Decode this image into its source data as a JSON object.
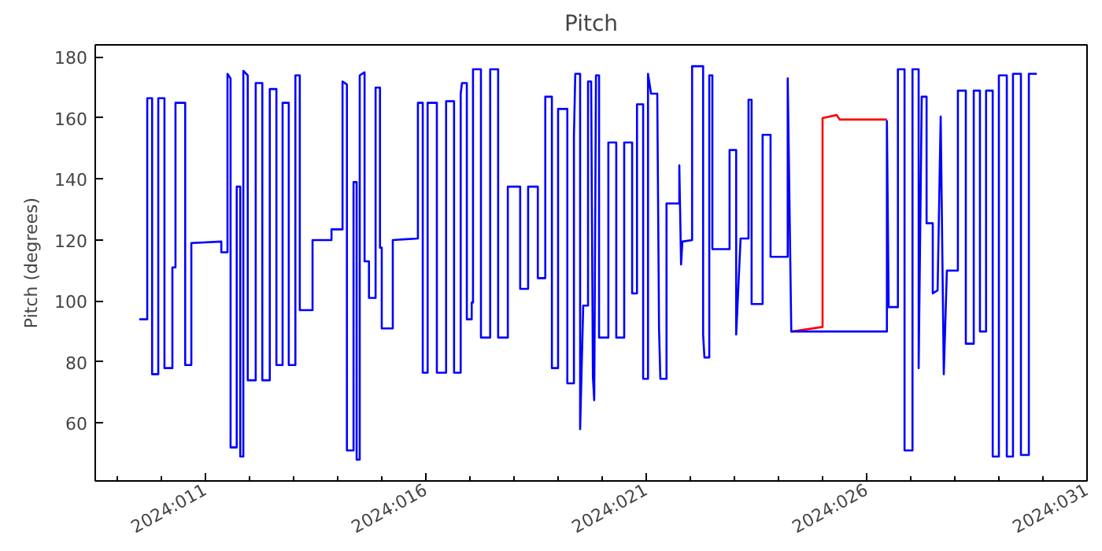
{
  "chart_data": {
    "type": "line",
    "title": "Pitch",
    "ylabel": "Pitch (degrees)",
    "xlim": [
      "2024-01-08T12:00",
      "2024-01-31T00:00"
    ],
    "ylim": [
      41,
      184
    ],
    "xticks": [
      {
        "value": "2024-01-11",
        "label": "2024:011"
      },
      {
        "value": "2024-01-16",
        "label": "2024:016"
      },
      {
        "value": "2024-01-21",
        "label": "2024:021"
      },
      {
        "value": "2024-01-26",
        "label": "2024:026"
      },
      {
        "value": "2024-01-31",
        "label": "2024:031"
      }
    ],
    "yticks": [
      60,
      80,
      100,
      120,
      140,
      160,
      180
    ],
    "series": [
      {
        "color": "#ff0000",
        "x": [
          "2024-01-24T06:58",
          "2024-01-25T00:00",
          "2024-01-25T00:00",
          "2024-01-25T07:41",
          "2024-01-25T09:22",
          "2024-01-26T11:02"
        ],
        "values": [
          90,
          91.5,
          160,
          161,
          159.5,
          159.5
        ]
      },
      {
        "color": "#0000ff",
        "x": [
          "2024-01-09T12:00",
          "2024-01-09T16:19",
          "2024-01-09T16:19",
          "2024-01-09T18:58",
          "2024-01-09T18:58",
          "2024-01-09T22:19",
          "2024-01-09T22:19",
          "2024-01-10T01:41",
          "2024-01-10T01:41",
          "2024-01-10T06:00",
          "2024-01-10T06:00",
          "2024-01-10T07:41",
          "2024-01-10T07:41",
          "2024-01-10T12:58",
          "2024-01-10T12:58",
          "2024-01-10T16:19",
          "2024-01-10T16:19",
          "2024-01-11T08:38",
          "2024-01-11T08:38",
          "2024-01-11T12:00",
          "2024-01-11T12:00",
          "2024-01-11T13:41",
          "2024-01-11T13:41",
          "2024-01-11T17:02",
          "2024-01-11T17:02",
          "2024-01-11T18:58",
          "2024-01-11T18:58",
          "2024-01-11T20:38",
          "2024-01-11T20:38",
          "2024-01-11T23:02",
          "2024-01-11T23:02",
          "2024-01-12T03:22",
          "2024-01-12T03:22",
          "2024-01-12T06:58",
          "2024-01-12T06:58",
          "2024-01-12T11:02",
          "2024-01-12T11:02",
          "2024-01-12T14:38",
          "2024-01-12T14:38",
          "2024-01-12T18:00",
          "2024-01-12T18:00",
          "2024-01-12T21:22",
          "2024-01-12T21:22",
          "2024-01-13T00:58",
          "2024-01-13T00:58",
          "2024-01-13T03:22",
          "2024-01-13T03:22",
          "2024-01-13T10:19",
          "2024-01-13T10:19",
          "2024-01-13T20:38",
          "2024-01-13T20:38",
          "2024-01-14T02:38",
          "2024-01-14T02:38",
          "2024-01-14T05:02",
          "2024-01-14T05:02",
          "2024-01-14T08:38",
          "2024-01-14T08:38",
          "2024-01-14T10:19",
          "2024-01-14T10:19",
          "2024-01-14T12:00",
          "2024-01-14T12:00",
          "2024-01-14T14:38",
          "2024-01-14T14:38",
          "2024-01-14T17:02",
          "2024-01-14T17:02",
          "2024-01-14T20:38",
          "2024-01-14T20:38",
          "2024-01-14T23:02",
          "2024-01-14T23:02",
          "2024-01-15T00:00",
          "2024-01-15T00:00",
          "2024-01-15T06:00",
          "2024-01-15T06:00",
          "2024-01-15T19:41",
          "2024-01-15T19:41",
          "2024-01-15T22:19",
          "2024-01-15T22:19",
          "2024-01-16T00:58",
          "2024-01-16T00:58",
          "2024-01-16T06:00",
          "2024-01-16T06:00",
          "2024-01-16T11:02",
          "2024-01-16T11:02",
          "2024-01-16T15:22",
          "2024-01-16T15:22",
          "2024-01-16T18:58",
          "2024-01-16T18:58",
          "2024-01-16T19:41",
          "2024-01-16T22:19",
          "2024-01-16T22:19",
          "2024-01-17T00:58",
          "2024-01-17T00:58",
          "2024-01-17T01:41",
          "2024-01-17T01:41",
          "2024-01-17T06:00",
          "2024-01-17T06:00",
          "2024-01-17T11:02",
          "2024-01-17T11:02",
          "2024-01-17T15:22",
          "2024-01-17T15:22",
          "2024-01-17T20:38",
          "2024-01-17T20:38",
          "2024-01-18T03:22",
          "2024-01-18T03:22",
          "2024-01-18T07:41",
          "2024-01-18T07:41",
          "2024-01-18T12:58",
          "2024-01-18T12:58",
          "2024-01-18T17:02",
          "2024-01-18T17:02",
          "2024-01-18T20:38",
          "2024-01-18T20:38",
          "2024-01-19T00:00",
          "2024-01-19T00:00",
          "2024-01-19T05:02",
          "2024-01-19T05:02",
          "2024-01-19T08:38",
          "2024-01-19T08:38",
          "2024-01-19T09:22",
          "2024-01-19T12:00",
          "2024-01-19T12:00",
          "2024-01-19T13:41",
          "2024-01-19T16:19",
          "2024-01-19T16:19",
          "2024-01-19T18:00",
          "2024-01-19T18:58",
          "2024-01-19T19:41",
          "2024-01-19T20:38",
          "2024-01-19T22:19",
          "2024-01-19T22:19",
          "2024-01-20T03:22",
          "2024-01-20T03:22",
          "2024-01-20T07:41",
          "2024-01-20T07:41",
          "2024-01-20T12:00",
          "2024-01-20T12:00",
          "2024-01-20T16:19",
          "2024-01-20T16:19",
          "2024-01-20T18:58",
          "2024-01-20T18:58",
          "2024-01-20T22:19",
          "2024-01-20T22:19",
          "2024-01-21T00:58",
          "2024-01-21T00:58",
          "2024-01-21T02:38",
          "2024-01-21T06:00",
          "2024-01-21T06:58",
          "2024-01-21T07:41",
          "2024-01-21T11:02",
          "2024-01-21T11:02",
          "2024-01-21T18:00",
          "2024-01-21T18:00",
          "2024-01-21T18:58",
          "2024-01-21T19:41",
          "2024-01-22T00:58",
          "2024-01-22T00:58",
          "2024-01-22T06:58",
          "2024-01-22T06:58",
          "2024-01-22T07:41",
          "2024-01-22T10:19",
          "2024-01-22T10:19",
          "2024-01-22T12:00",
          "2024-01-22T12:00",
          "2024-01-22T21:22",
          "2024-01-22T21:22",
          "2024-01-23T00:58",
          "2024-01-23T00:58",
          "2024-01-23T03:22",
          "2024-01-23T07:41",
          "2024-01-23T07:41",
          "2024-01-23T09:22",
          "2024-01-23T09:22",
          "2024-01-23T15:22",
          "2024-01-23T15:22",
          "2024-01-23T19:41",
          "2024-01-23T19:41",
          "2024-01-24T05:02",
          "2024-01-24T05:02",
          "2024-01-24T06:58",
          "2024-01-26T11:02",
          "2024-01-26T11:02",
          "2024-01-26T12:00",
          "2024-01-26T17:02",
          "2024-01-26T17:02",
          "2024-01-26T20:38",
          "2024-01-26T20:38",
          "2024-01-27T00:58",
          "2024-01-27T00:58",
          "2024-01-27T04:19",
          "2024-01-27T04:19",
          "2024-01-27T06:00",
          "2024-01-27T08:38",
          "2024-01-27T08:38",
          "2024-01-27T12:00",
          "2024-01-27T12:00",
          "2024-01-27T14:38",
          "2024-01-27T16:19",
          "2024-01-27T18:00",
          "2024-01-27T19:41",
          "2024-01-28T01:41",
          "2024-01-28T01:41",
          "2024-01-28T06:00",
          "2024-01-28T06:00",
          "2024-01-28T10:19",
          "2024-01-28T10:19",
          "2024-01-28T13:41",
          "2024-01-28T13:41",
          "2024-01-28T17:02",
          "2024-01-28T17:02",
          "2024-01-28T20:38",
          "2024-01-28T20:38",
          "2024-01-29T00:00",
          "2024-01-29T00:00",
          "2024-01-29T04:19",
          "2024-01-29T04:19",
          "2024-01-29T07:41",
          "2024-01-29T07:41",
          "2024-01-29T12:00",
          "2024-01-29T12:00",
          "2024-01-29T16:19",
          "2024-01-29T16:19",
          "2024-01-29T20:38"
        ],
        "values": [
          94,
          94,
          166.5,
          166.5,
          76,
          76,
          166.5,
          166.5,
          78,
          78,
          111,
          111,
          165,
          165,
          79,
          79,
          119,
          119.5,
          116,
          116,
          174.5,
          173,
          52,
          52,
          137.5,
          137.5,
          49,
          49,
          175.5,
          174,
          74,
          74,
          171.5,
          171.5,
          74,
          74,
          169.5,
          169.5,
          79,
          79,
          165,
          165,
          79,
          79,
          174,
          174,
          97,
          97,
          120,
          120,
          123.5,
          123.5,
          172,
          171,
          51,
          51,
          139,
          139,
          48,
          48,
          174,
          175,
          113,
          113,
          101,
          101,
          170,
          170,
          117.5,
          117.5,
          91,
          91,
          120,
          120.5,
          165,
          165,
          76.5,
          76.5,
          165,
          165,
          76.5,
          76.5,
          165.5,
          165.5,
          76.5,
          76.5,
          168,
          171.5,
          171.5,
          94,
          94,
          99.5,
          99.5,
          176,
          176,
          88,
          88,
          176,
          176,
          88,
          88,
          137.5,
          137.5,
          104,
          104,
          137.5,
          137.5,
          107.5,
          107.5,
          167,
          167,
          78,
          78,
          163,
          163,
          73,
          73,
          154,
          174.5,
          174.5,
          58,
          98.5,
          98.5,
          172,
          172,
          75,
          67.5,
          174,
          174,
          88,
          88,
          152,
          152,
          88,
          88,
          152,
          152,
          102.5,
          102.5,
          164.5,
          164.5,
          74.5,
          74.5,
          174.5,
          168,
          168,
          91,
          74.5,
          74.5,
          132,
          132,
          144.5,
          112,
          119.5,
          120,
          177,
          177,
          89,
          81.5,
          81.5,
          174,
          174,
          117,
          117,
          149.5,
          149.5,
          89,
          120.5,
          120.5,
          166,
          166,
          99,
          99,
          154.5,
          154.5,
          114.5,
          114.5,
          173,
          90,
          90,
          159,
          98,
          98,
          176,
          176,
          51,
          51,
          176,
          176,
          78,
          167,
          167,
          125.5,
          125.5,
          102.5,
          103.5,
          160.5,
          76,
          110,
          110,
          169,
          169,
          86,
          86,
          169,
          169,
          90,
          90,
          169,
          169,
          49,
          49,
          174,
          174,
          49,
          49,
          174.5,
          174.5,
          49.5,
          49.5,
          174.5,
          174.5
        ]
      }
    ]
  }
}
